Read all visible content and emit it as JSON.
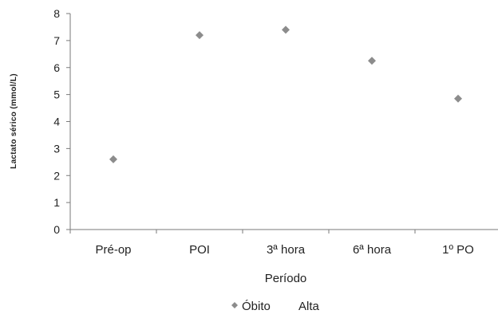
{
  "chart_data": {
    "type": "scatter",
    "title": "",
    "xlabel": "Período",
    "ylabel": "Lactato sérico (mmol/L)",
    "ylim": [
      0,
      8
    ],
    "yticks": [
      "0",
      "1",
      "2",
      "3",
      "4",
      "5",
      "6",
      "7",
      "8"
    ],
    "categories": [
      "Pré-op",
      "POI",
      "3ª hora",
      "6ª hora",
      "1º PO"
    ],
    "series": [
      {
        "name": "Óbito",
        "values": [
          2.6,
          7.2,
          7.4,
          6.25,
          4.85
        ],
        "color": "#8c8c8c",
        "marker": "diamond"
      },
      {
        "name": "Alta",
        "values": [],
        "color": "#8c8c8c",
        "marker": "none"
      }
    ],
    "grid": false,
    "legend": "bottom"
  }
}
